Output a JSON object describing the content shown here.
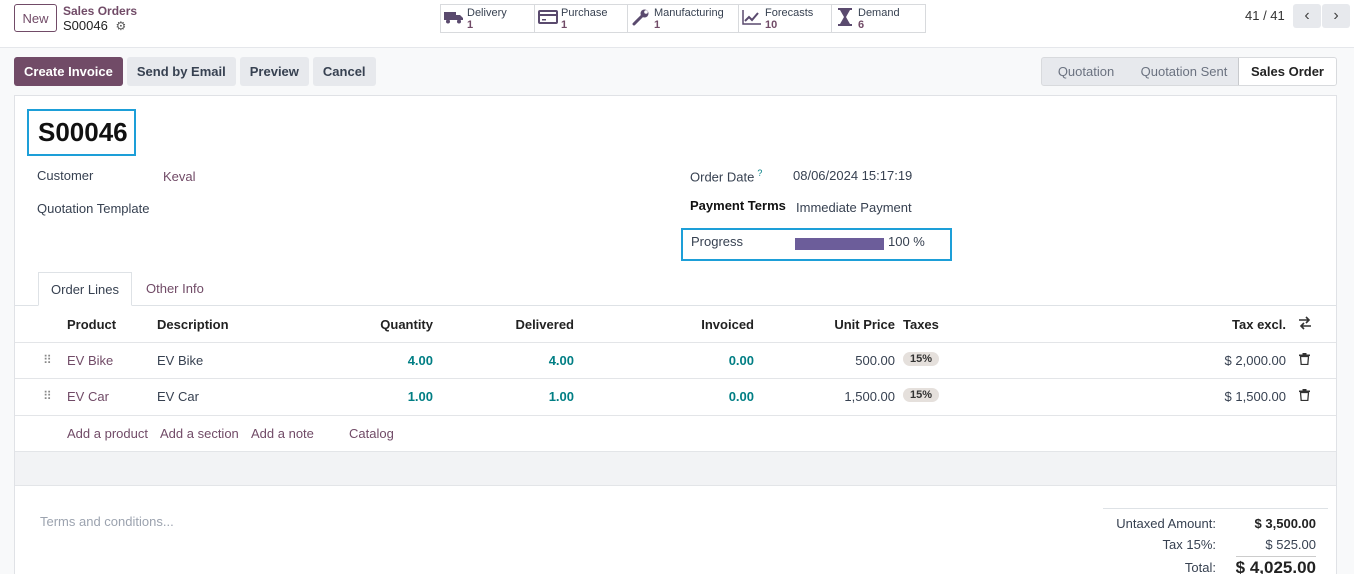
{
  "control_panel": {
    "new_label": "New",
    "breadcrumb_parent": "Sales Orders",
    "breadcrumb_current": "S00046",
    "pager": "41 / 41"
  },
  "smart_buttons": [
    {
      "label": "Delivery",
      "count": "1",
      "icon": "truck-icon"
    },
    {
      "label": "Purchase",
      "count": "1",
      "icon": "credit-card-icon"
    },
    {
      "label": "Manufacturing",
      "count": "1",
      "icon": "wrench-icon"
    },
    {
      "label": "Forecasts",
      "count": "10",
      "icon": "area-chart-icon"
    },
    {
      "label": "Demand",
      "count": "6",
      "icon": "hourglass-icon"
    }
  ],
  "actions": {
    "create_invoice": "Create Invoice",
    "send_email": "Send by Email",
    "preview": "Preview",
    "cancel": "Cancel"
  },
  "stages": [
    "Quotation",
    "Quotation Sent",
    "Sales Order"
  ],
  "record": {
    "name": "S00046",
    "customer_label": "Customer",
    "customer": "Keval",
    "template_label": "Quotation Template",
    "order_date_label": "Order Date",
    "order_date_tip": "?",
    "order_date": "08/06/2024 15:17:19",
    "payment_terms_label": "Payment Terms",
    "payment_terms": "Immediate Payment",
    "progress_label": "Progress",
    "progress_text": "100 %",
    "progress_value": 100
  },
  "tabs": {
    "order_lines": "Order Lines",
    "other_info": "Other Info"
  },
  "table": {
    "headers": {
      "product": "Product",
      "description": "Description",
      "quantity": "Quantity",
      "delivered": "Delivered",
      "invoiced": "Invoiced",
      "unit_price": "Unit Price",
      "taxes": "Taxes",
      "tax_excl": "Tax excl."
    },
    "rows": [
      {
        "product": "EV Bike",
        "description": "EV Bike",
        "quantity": "4.00",
        "delivered": "4.00",
        "invoiced": "0.00",
        "unit_price": "500.00",
        "tax": "15%",
        "subtotal": "$ 2,000.00"
      },
      {
        "product": "EV Car",
        "description": "EV Car",
        "quantity": "1.00",
        "delivered": "1.00",
        "invoiced": "0.00",
        "unit_price": "1,500.00",
        "tax": "15%",
        "subtotal": "$ 1,500.00"
      }
    ],
    "add_links": {
      "product": "Add a product",
      "section": "Add a section",
      "note": "Add a note",
      "catalog": "Catalog"
    }
  },
  "footer": {
    "terms_placeholder": "Terms and conditions...",
    "untaxed_label": "Untaxed Amount:",
    "untaxed": "$ 3,500.00",
    "tax_label": "Tax 15%:",
    "tax": "$ 525.00",
    "total_label": "Total:",
    "total": "$ 4,025.00"
  },
  "colors": {
    "brand": "#714b67",
    "link_teal": "#017e84",
    "highlight": "#1d9fd8",
    "progress": "#6c5d9a"
  }
}
